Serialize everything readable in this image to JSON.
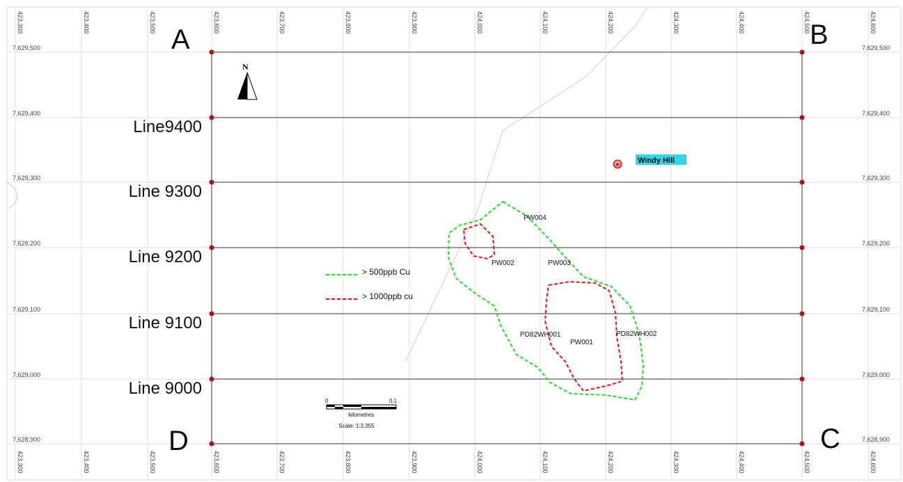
{
  "map": {
    "easting_ticks": [
      "423,300",
      "423,400",
      "423,500",
      "423,600",
      "423,700",
      "423,800",
      "423,900",
      "424,000",
      "424,100",
      "424,200",
      "424,300",
      "424,400",
      "424,500",
      "424,600"
    ],
    "northing_ticks": [
      "7,629,500",
      "7,629,400",
      "7,629,300",
      "7,629,200",
      "7,629,100",
      "7,629,000",
      "7,628,900"
    ],
    "corners": {
      "a": "A",
      "b": "B",
      "c": "C",
      "d": "D"
    },
    "lines": [
      "Line9400",
      "Line 9300",
      "Line 9200",
      "Line 9100",
      "Line 9000"
    ],
    "north_label": "N",
    "place": {
      "name": "Windy Hill",
      "highlight": "#33d6e6",
      "symbol_color": "#e02020"
    },
    "stations": [
      "PW004",
      "PW002",
      "PW003",
      "PD82WH001",
      "PW001",
      "PD82WH002"
    ],
    "legend": [
      {
        "label": "> 500ppb Cu",
        "color": "#22dd22"
      },
      {
        "label": "> 1000ppb cu",
        "color": "#ee1111"
      }
    ],
    "scalebar": {
      "min": "0",
      "max": "0.1",
      "unit": "kilometres",
      "scale": "Scale: 1:3,355"
    }
  }
}
